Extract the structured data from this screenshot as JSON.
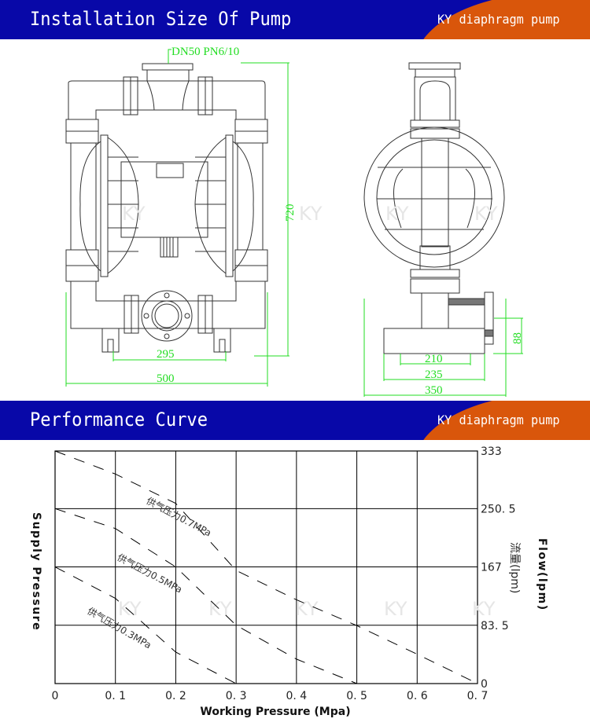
{
  "section1": {
    "title": "Installation Size Of Pump",
    "brand": "KY diaphragm pump"
  },
  "section2": {
    "title": "Performance Curve",
    "brand": "KY diaphragm pump"
  },
  "drawing": {
    "flange_label": "DN50 PN6/10",
    "front_dims": {
      "height": "720",
      "foot_spacing": "295",
      "width": "500"
    },
    "side_dims": {
      "inner": "210",
      "base": "235",
      "overall": "350",
      "outlet_height": "88"
    },
    "watermark": "KY"
  },
  "colors": {
    "banner": "#0808a8",
    "brand": "#d9560b",
    "dimension": "#22dd22"
  },
  "chart_data": {
    "type": "line",
    "xlabel": "Working Pressure (Mpa)",
    "ylabel_left": "Supply Pressure",
    "ylabel_right": "Flow(lpm)",
    "ylabel_right_cn": "流量(lpm)",
    "xlim": [
      0,
      0.7
    ],
    "ylim": [
      0,
      333
    ],
    "x_ticks": [
      "0",
      "0.1",
      "0.2",
      "0.3",
      "0.4",
      "0.5",
      "0.6",
      "0.7"
    ],
    "y_ticks": [
      "0",
      "83.5",
      "167",
      "250.5",
      "333"
    ],
    "grid": true,
    "line_style": "dashed",
    "series": [
      {
        "name": "供气压力0.7MPa",
        "x": [
          0,
          0.1,
          0.2,
          0.3,
          0.4,
          0.5,
          0.6,
          0.7
        ],
        "y": [
          333,
          300,
          258,
          162,
          120,
          83,
          42,
          0
        ]
      },
      {
        "name": "供气压力0.5MPa",
        "x": [
          0,
          0.1,
          0.2,
          0.3,
          0.4,
          0.5
        ],
        "y": [
          250.5,
          222,
          167,
          83.5,
          35,
          0
        ]
      },
      {
        "name": "供气压力0.3MPa",
        "x": [
          0,
          0.1,
          0.2,
          0.3
        ],
        "y": [
          167,
          122,
          45,
          0
        ]
      }
    ]
  }
}
